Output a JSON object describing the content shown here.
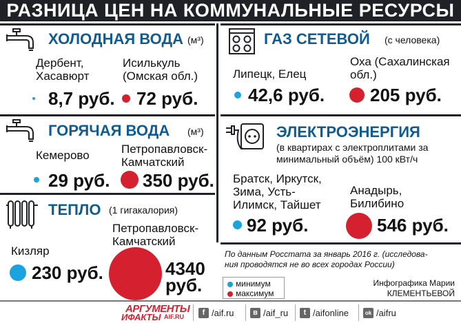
{
  "title": "РАЗНИЦА ЦЕН НА КОММУНАЛЬНЫЕ РЕСУРСЫ",
  "colors": {
    "min": "#1aa3dd",
    "max": "#d5202f",
    "heading": "#0e5c92",
    "dark": "#1f2127"
  },
  "cold_water": {
    "icon": "faucet-icon",
    "title": "ХОЛОДНАЯ ВОДА",
    "unit": "(м³)",
    "min_city": "Дербент,\nХасавюрт",
    "min_price": "8,7 руб.",
    "max_city": "Исилькуль\n(Омская обл.)",
    "max_price": "72 руб."
  },
  "gas": {
    "icon": "gas-stove-icon",
    "title": "ГАЗ СЕТЕВОЙ",
    "unit": "(с человека)",
    "min_city": "Липецк, Елец",
    "min_price": "42,6 руб.",
    "max_city": "Оха (Сахалинская\nобл.)",
    "max_price": "205 руб."
  },
  "hot_water": {
    "icon": "faucet-icon",
    "title": "ГОРЯЧАЯ ВОДА",
    "unit": "(м³)",
    "min_city": "Кемерово",
    "min_price": "29 руб.",
    "max_city": "Петропавловск-\nКамчатский",
    "max_price": "350 руб."
  },
  "electricity": {
    "icon": "power-outlet-icon",
    "title": "ЭЛЕКТРОЭНЕРГИЯ",
    "unit": "(в квартирах с электроплитами за\nминимальный объём) 100 кВт/ч",
    "min_city": "Братск, Иркутск,\nЗима, Усть-\nИлимск, Тайшет",
    "min_price": "92 руб.",
    "max_city": "Анадырь,\nБилибино",
    "max_price": "546 руб."
  },
  "heat": {
    "icon": "radiator-icon",
    "title": "ТЕПЛО",
    "unit": "(1 гигакалория)",
    "min_city": "Кизляр",
    "min_price": "230 руб.",
    "max_city": "Петропавловск-\nКамчатский",
    "max_price": "4340\nруб."
  },
  "source_note": "По данным Росстата за январь 2016 г. (исследова-\nния проводятся не во всех городах России)",
  "legend": {
    "min": "минимум",
    "max": "максимум"
  },
  "author": "Инфографика Марии\nКЛЕМЕНТЬЕВОЙ",
  "footer": {
    "logo_line1": "АРГУМЕНТЫ",
    "logo_line2": "ИФАКТЫ",
    "logo_domain": "AIF.RU",
    "social": [
      {
        "icon": "facebook-icon",
        "glyph": "f",
        "text": "/aif.ru"
      },
      {
        "icon": "vk-icon",
        "glyph": "в",
        "text": "/aif_ru"
      },
      {
        "icon": "twitter-icon",
        "glyph": "t",
        "text": "/aifonline"
      },
      {
        "icon": "odnoklassniki-icon",
        "glyph": "ok",
        "text": "/aifru"
      }
    ]
  }
}
